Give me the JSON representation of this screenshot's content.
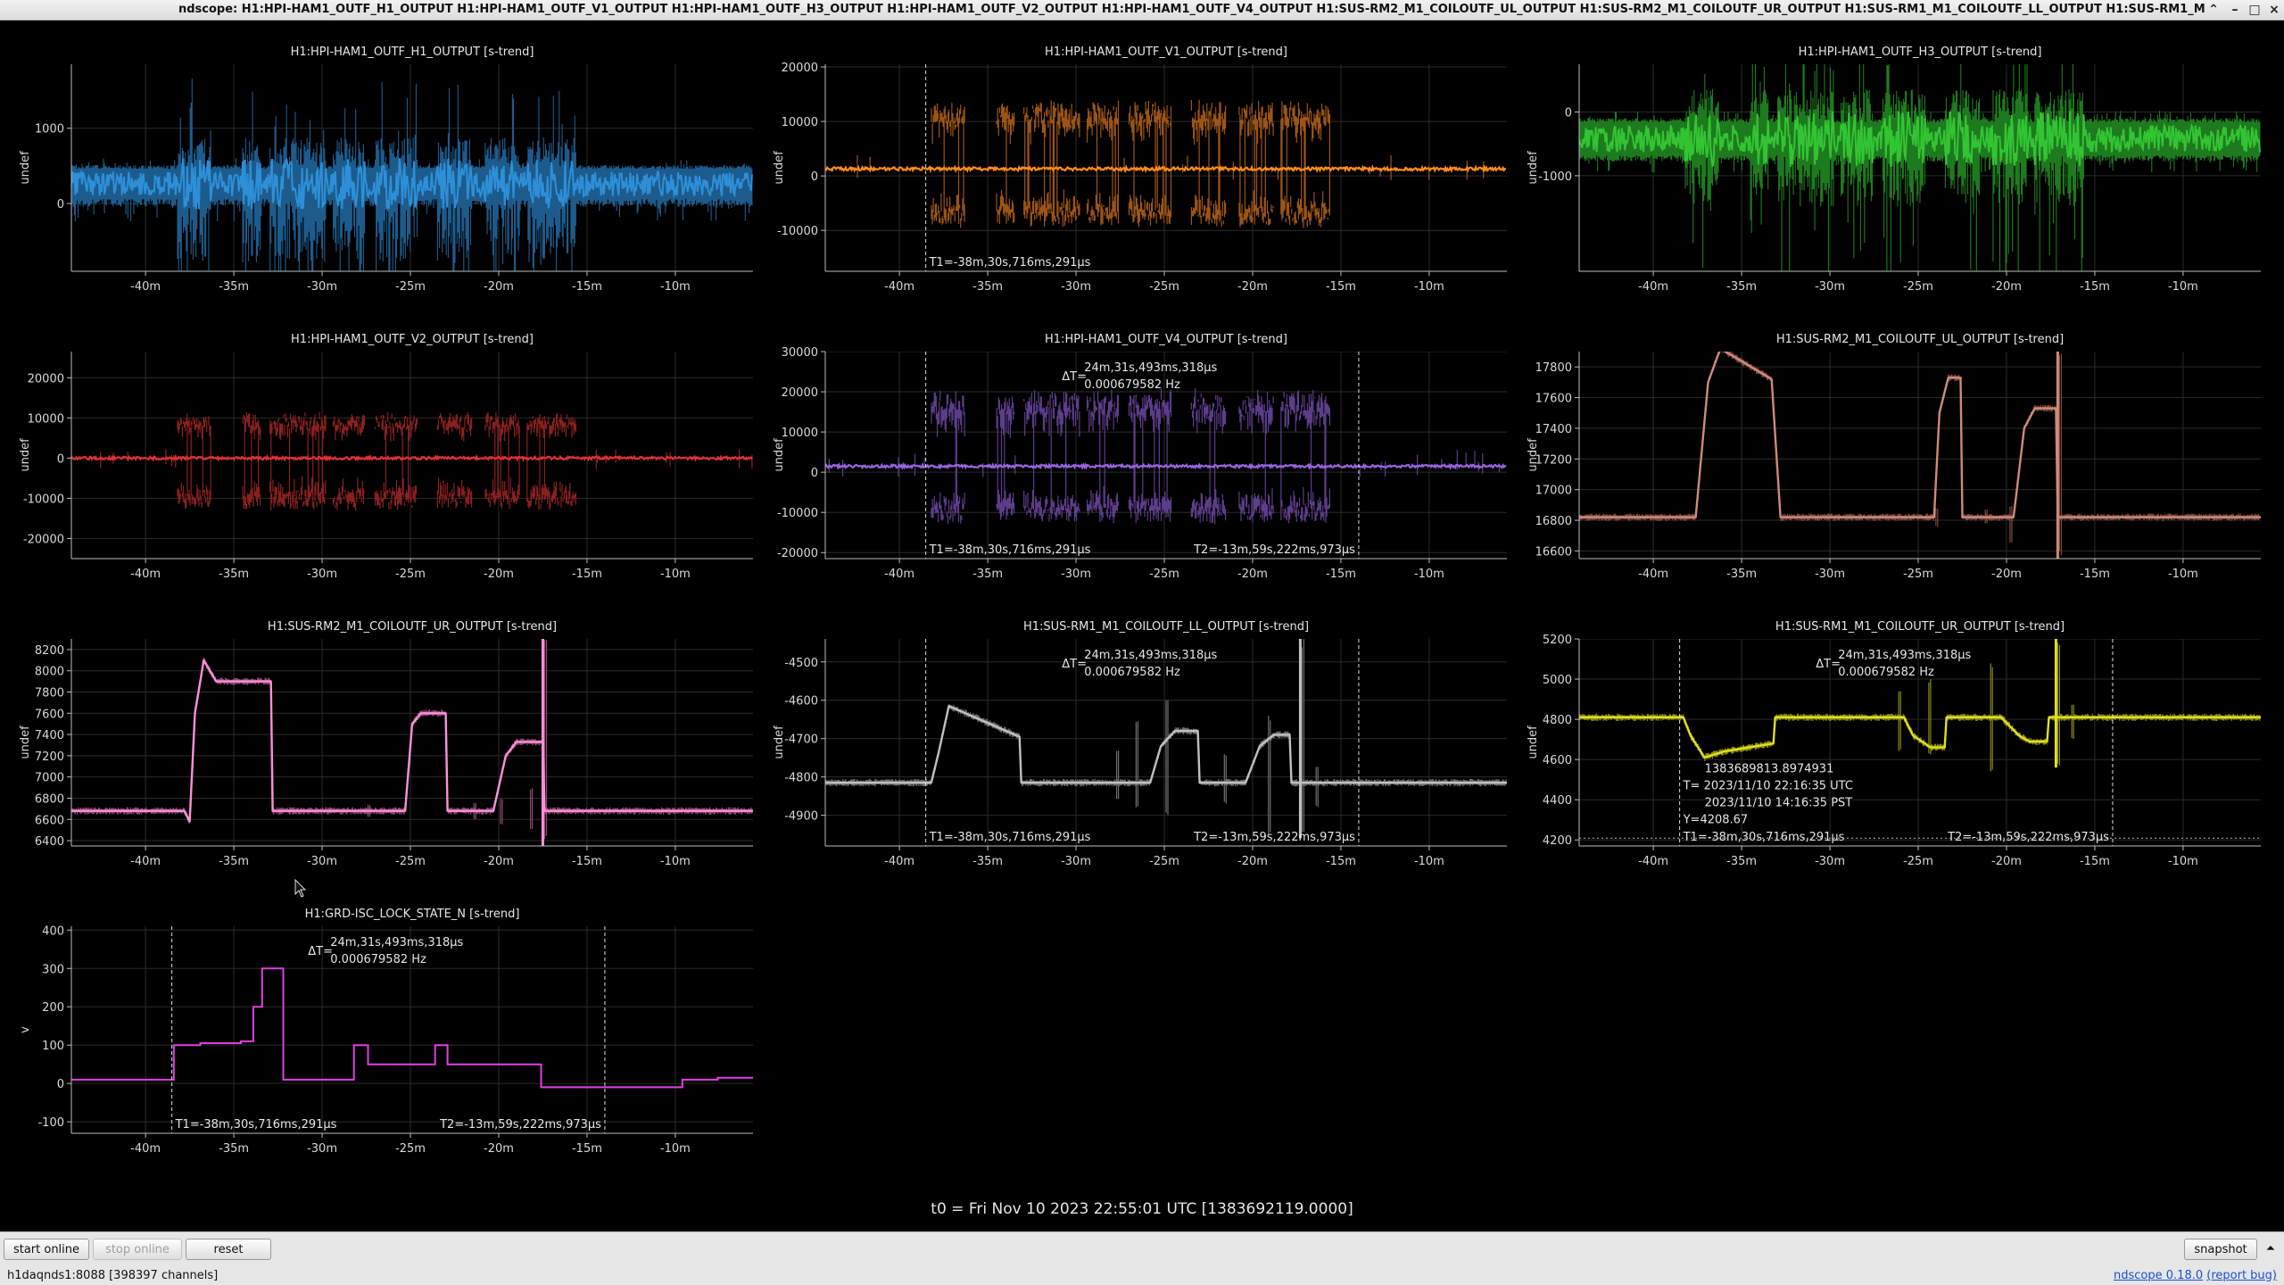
{
  "window": {
    "title": "ndscope: H1:HPI-HAM1_OUTF_H1_OUTPUT H1:HPI-HAM1_OUTF_V1_OUTPUT H1:HPI-HAM1_OUTF_H3_OUTPUT H1:HPI-HAM1_OUTF_V2_OUTPUT H1:HPI-HAM1_OUTF_V4_OUTPUT H1:SUS-RM2_M1_COILOUTF_UL_OUTPUT H1:SUS-RM2_M1_COILOUTF_UR_OUTPUT H1:SUS-RM1_M1_COILOUTF_LL_OUTPUT H1:SUS-RM1_M",
    "controls": [
      "⌃",
      "–",
      "□",
      "×"
    ]
  },
  "x_ticks": [
    "-40m",
    "-35m",
    "-30m",
    "-25m",
    "-20m",
    "-15m",
    "-10m"
  ],
  "x_tick_values": [
    -40,
    -35,
    -30,
    -25,
    -20,
    -15,
    -10
  ],
  "x_range": [
    -44.2,
    -5.6
  ],
  "cursors": {
    "t1_label": "T1=-38m,30s,716ms,291µs",
    "t2_label": "T2=-13m,59s,222ms,973µs",
    "t1_value": -38.51,
    "t2_value": -13.99,
    "delta_symbol": "ΔT=",
    "delta_time": "24m,31s,493ms,318µs",
    "delta_freq": "0.000679582 Hz"
  },
  "plots": [
    {
      "key": "p1",
      "title": "H1:HPI-HAM1_OUTF_H1_OUTPUT [s-trend]",
      "ylabel": "undef",
      "color": "#2d8fd8",
      "shade": "#1d5b8c",
      "ylim": [
        -900,
        1850
      ],
      "yticks": [
        {
          "v": 1000,
          "t": "1000"
        },
        {
          "v": 0,
          "t": "0"
        }
      ],
      "style": "noise",
      "base": 260,
      "band": 200,
      "env": [
        1200,
        2500
      ],
      "cursor": []
    },
    {
      "key": "p2",
      "title": "H1:HPI-HAM1_OUTF_V1_OUTPUT [s-trend]",
      "ylabel": "undef",
      "color": "#ff8c1a",
      "shade": "#9c5416",
      "ylim": [
        -17500,
        20500
      ],
      "yticks": [
        {
          "v": 20000,
          "t": "20000"
        },
        {
          "v": 10000,
          "t": "10000"
        },
        {
          "v": 0,
          "t": "0"
        },
        {
          "v": -10000,
          "t": "-10000"
        }
      ],
      "style": "split",
      "base": 1300,
      "band": 600,
      "env": [
        10500,
        9000
      ],
      "cursor": [
        "t1"
      ]
    },
    {
      "key": "p3",
      "title": "H1:HPI-HAM1_OUTF_H3_OUTPUT [s-trend]",
      "ylabel": "undef",
      "color": "#33c433",
      "shade": "#1e7a1e",
      "ylim": [
        -2500,
        750
      ],
      "yticks": [
        {
          "v": 0,
          "t": "0"
        },
        {
          "v": -1000,
          "t": "-1000"
        }
      ],
      "style": "noise",
      "base": -420,
      "band": 260,
      "env": [
        1500,
        2300
      ],
      "cursor": []
    },
    {
      "key": "p4",
      "title": "H1:HPI-HAM1_OUTF_V2_OUTPUT [s-trend]",
      "ylabel": "undef",
      "color": "#e03232",
      "shade": "#8a1f1f",
      "ylim": [
        -25000,
        26500
      ],
      "yticks": [
        {
          "v": 20000,
          "t": "20000"
        },
        {
          "v": 10000,
          "t": "10000"
        },
        {
          "v": 0,
          "t": "0"
        },
        {
          "v": -10000,
          "t": "-10000"
        },
        {
          "v": -20000,
          "t": "-20000"
        }
      ],
      "style": "split",
      "base": 0,
      "band": 700,
      "env": [
        9500,
        11000
      ],
      "cursor": []
    },
    {
      "key": "p5",
      "title": "H1:HPI-HAM1_OUTF_V4_OUTPUT [s-trend]",
      "ylabel": "undef",
      "color": "#9a64e0",
      "shade": "#5c3d8a",
      "ylim": [
        -21500,
        30000
      ],
      "yticks": [
        {
          "v": 30000,
          "t": "30000"
        },
        {
          "v": 20000,
          "t": "20000"
        },
        {
          "v": 10000,
          "t": "10000"
        },
        {
          "v": 0,
          "t": "0"
        },
        {
          "v": -10000,
          "t": "-10000"
        },
        {
          "v": -20000,
          "t": "-20000"
        }
      ],
      "style": "split",
      "base": 1500,
      "band": 700,
      "env": [
        16000,
        12000
      ],
      "cursor": [
        "t1",
        "t2",
        "delta"
      ]
    },
    {
      "key": "p6",
      "title": "H1:SUS-RM2_M1_COILOUTF_UL_OUTPUT [s-trend]",
      "ylabel": "undef",
      "color": "#d08a7a",
      "shade": "#7a4a40",
      "ylim": [
        16550,
        17900
      ],
      "yticks": [
        {
          "v": 17800,
          "t": "17800"
        },
        {
          "v": 17600,
          "t": "17600"
        },
        {
          "v": 17400,
          "t": "17400"
        },
        {
          "v": 17200,
          "t": "17200"
        },
        {
          "v": 17000,
          "t": "17000"
        },
        {
          "v": 16800,
          "t": "16800"
        },
        {
          "v": 16600,
          "t": "16600"
        }
      ],
      "style": "step",
      "steps": [
        [
          -44.2,
          16820
        ],
        [
          -37.6,
          16820
        ],
        [
          -36.9,
          17700
        ],
        [
          -36.2,
          17920
        ],
        [
          -33.3,
          17720
        ],
        [
          -32.8,
          16820
        ],
        [
          -24.1,
          16820
        ],
        [
          -23.8,
          17500
        ],
        [
          -23.3,
          17730
        ],
        [
          -22.6,
          17730
        ],
        [
          -22.5,
          16820
        ],
        [
          -19.6,
          16820
        ],
        [
          -19.0,
          17400
        ],
        [
          -18.4,
          17530
        ],
        [
          -17.2,
          17530
        ],
        [
          -17.1,
          16820
        ],
        [
          -5.6,
          16820
        ]
      ],
      "spikes": [
        [
          -17.1,
          16550,
          17900,
          "strong"
        ],
        [
          -19.8,
          16650,
          16900,
          "weak"
        ],
        [
          -21.2,
          16780,
          16870,
          "weak"
        ],
        [
          -24.0,
          16760,
          16880,
          "weak"
        ]
      ],
      "cursor": []
    },
    {
      "key": "p7",
      "title": "H1:SUS-RM2_M1_COILOUTF_UR_OUTPUT [s-trend]",
      "ylabel": "undef",
      "color": "#ff90d8",
      "shade": "#8a4a74",
      "ylim": [
        6350,
        8300
      ],
      "yticks": [
        {
          "v": 8200,
          "t": "8200"
        },
        {
          "v": 8000,
          "t": "8000"
        },
        {
          "v": 7800,
          "t": "7800"
        },
        {
          "v": 7600,
          "t": "7600"
        },
        {
          "v": 7400,
          "t": "7400"
        },
        {
          "v": 7200,
          "t": "7200"
        },
        {
          "v": 7000,
          "t": "7000"
        },
        {
          "v": 6800,
          "t": "6800"
        },
        {
          "v": 6600,
          "t": "6600"
        },
        {
          "v": 6400,
          "t": "6400"
        }
      ],
      "style": "step",
      "steps": [
        [
          -44.2,
          6680
        ],
        [
          -37.8,
          6680
        ],
        [
          -37.5,
          6580
        ],
        [
          -37.2,
          7600
        ],
        [
          -36.7,
          8100
        ],
        [
          -36.0,
          7900
        ],
        [
          -32.9,
          7900
        ],
        [
          -32.8,
          6680
        ],
        [
          -25.3,
          6680
        ],
        [
          -24.9,
          7500
        ],
        [
          -24.4,
          7600
        ],
        [
          -23.0,
          7600
        ],
        [
          -22.9,
          6680
        ],
        [
          -20.3,
          6680
        ],
        [
          -19.6,
          7200
        ],
        [
          -19.0,
          7330
        ],
        [
          -17.5,
          7330
        ],
        [
          -17.4,
          6680
        ],
        [
          -5.6,
          6680
        ]
      ],
      "spikes": [
        [
          -17.5,
          6350,
          8300,
          "strong"
        ],
        [
          -18.2,
          6500,
          6900,
          "weak"
        ],
        [
          -19.9,
          6550,
          6800,
          "weak"
        ],
        [
          -21.4,
          6600,
          6760,
          "weak"
        ],
        [
          -27.4,
          6620,
          6740,
          "weak"
        ]
      ],
      "cursor": []
    },
    {
      "key": "p8",
      "title": "H1:SUS-RM1_M1_COILOUTF_LL_OUTPUT [s-trend]",
      "ylabel": "undef",
      "color": "#c0c0c0",
      "shade": "#6e6e6e",
      "ylim": [
        -4980,
        -4440
      ],
      "yticks": [
        {
          "v": -4500,
          "t": "-4500"
        },
        {
          "v": -4600,
          "t": "-4600"
        },
        {
          "v": -4700,
          "t": "-4700"
        },
        {
          "v": -4800,
          "t": "-4800"
        },
        {
          "v": -4900,
          "t": "-4900"
        }
      ],
      "style": "step",
      "steps": [
        [
          -44.2,
          -4815
        ],
        [
          -38.2,
          -4815
        ],
        [
          -37.8,
          -4740
        ],
        [
          -37.2,
          -4615
        ],
        [
          -36.2,
          -4635
        ],
        [
          -33.2,
          -4695
        ],
        [
          -33.1,
          -4815
        ],
        [
          -25.8,
          -4815
        ],
        [
          -25.2,
          -4720
        ],
        [
          -24.4,
          -4680
        ],
        [
          -23.1,
          -4680
        ],
        [
          -23.0,
          -4815
        ],
        [
          -20.4,
          -4815
        ],
        [
          -19.6,
          -4720
        ],
        [
          -18.8,
          -4690
        ],
        [
          -17.9,
          -4690
        ],
        [
          -17.8,
          -4815
        ],
        [
          -5.6,
          -4815
        ]
      ],
      "spikes": [
        [
          -17.3,
          -4960,
          -4440,
          "strong"
        ],
        [
          -24.9,
          -4905,
          -4600,
          "weak"
        ],
        [
          -26.6,
          -4880,
          -4650,
          "weak"
        ],
        [
          -27.7,
          -4860,
          -4730,
          "weak"
        ],
        [
          -21.6,
          -4870,
          -4740,
          "weak"
        ],
        [
          -19.1,
          -4950,
          -4640,
          "weak"
        ],
        [
          -16.4,
          -4880,
          -4770,
          "weak"
        ]
      ],
      "cursor": [
        "t1",
        "t2",
        "delta"
      ]
    },
    {
      "key": "p9",
      "title": "H1:SUS-RM1_M1_COILOUTF_UR_OUTPUT [s-trend]",
      "ylabel": "undef",
      "color": "#e0e020",
      "shade": "#8a8a14",
      "ylim": [
        4170,
        5200
      ],
      "yticks": [
        {
          "v": 5200,
          "t": "5200"
        },
        {
          "v": 5000,
          "t": "5000"
        },
        {
          "v": 4800,
          "t": "4800"
        },
        {
          "v": 4600,
          "t": "4600"
        },
        {
          "v": 4400,
          "t": "4400"
        },
        {
          "v": 4200,
          "t": "4200"
        }
      ],
      "style": "step",
      "steps": [
        [
          -44.2,
          4810
        ],
        [
          -38.3,
          4810
        ],
        [
          -37.9,
          4720
        ],
        [
          -37.1,
          4610
        ],
        [
          -36.0,
          4640
        ],
        [
          -33.2,
          4680
        ],
        [
          -33.1,
          4810
        ],
        [
          -25.8,
          4810
        ],
        [
          -25.3,
          4720
        ],
        [
          -24.3,
          4660
        ],
        [
          -23.5,
          4660
        ],
        [
          -23.4,
          4810
        ],
        [
          -20.3,
          4810
        ],
        [
          -19.3,
          4720
        ],
        [
          -18.7,
          4690
        ],
        [
          -17.7,
          4690
        ],
        [
          -17.6,
          4810
        ],
        [
          -5.6,
          4810
        ]
      ],
      "spikes": [
        [
          -17.2,
          4560,
          5200,
          "strong"
        ],
        [
          -20.9,
          4540,
          5080,
          "weak"
        ],
        [
          -24.4,
          4620,
          5000,
          "weak"
        ],
        [
          -26.1,
          4640,
          4940,
          "weak"
        ],
        [
          -16.3,
          4700,
          4880,
          "weak"
        ]
      ],
      "cursor": [
        "t1",
        "t2",
        "delta",
        "yline"
      ],
      "yline": 4208.67,
      "crosshair": {
        "lines": [
          "1383689813.8974931",
          "T= 2023/11/10 22:16:35 UTC",
          "2023/11/10 14:16:35 PST",
          "Y=4208.67"
        ]
      }
    },
    {
      "key": "p10",
      "title": "H1:GRD-ISC_LOCK_STATE_N [s-trend]",
      "ylabel": "v",
      "color": "#e040e0",
      "shade": "#e040e0",
      "ylim": [
        -130,
        410
      ],
      "yticks": [
        {
          "v": 400,
          "t": "400"
        },
        {
          "v": 300,
          "t": "300"
        },
        {
          "v": 200,
          "t": "200"
        },
        {
          "v": 100,
          "t": "100"
        },
        {
          "v": 0,
          "t": "0"
        },
        {
          "v": -100,
          "t": "-100"
        }
      ],
      "style": "stairs",
      "steps": [
        [
          -44.2,
          10
        ],
        [
          -38.4,
          10
        ],
        [
          -38.4,
          100
        ],
        [
          -36.9,
          100
        ],
        [
          -36.9,
          105
        ],
        [
          -34.6,
          105
        ],
        [
          -34.6,
          110
        ],
        [
          -33.9,
          110
        ],
        [
          -33.9,
          200
        ],
        [
          -33.4,
          200
        ],
        [
          -33.4,
          300
        ],
        [
          -32.2,
          300
        ],
        [
          -32.2,
          10
        ],
        [
          -28.2,
          10
        ],
        [
          -28.2,
          100
        ],
        [
          -27.4,
          100
        ],
        [
          -27.4,
          50
        ],
        [
          -23.6,
          50
        ],
        [
          -23.6,
          100
        ],
        [
          -22.9,
          100
        ],
        [
          -22.9,
          50
        ],
        [
          -17.6,
          50
        ],
        [
          -17.6,
          -10
        ],
        [
          -9.6,
          -10
        ],
        [
          -9.6,
          10
        ],
        [
          -7.6,
          10
        ],
        [
          -7.6,
          15
        ],
        [
          -5.6,
          15
        ]
      ],
      "cursor": [
        "t1",
        "t2",
        "delta"
      ]
    }
  ],
  "footer": {
    "t0": "t0 = Fri Nov 10 2023 22:55:01 UTC [1383692119.0000]",
    "start_online": "start online",
    "stop_online": "stop online",
    "reset": "reset",
    "snapshot": "snapshot",
    "snapshot_menu": "⏶",
    "server": "h1daqnds1:8088  [398397 channels]",
    "version": "ndscope 0.18.0",
    "report_bug": "(report bug)"
  }
}
